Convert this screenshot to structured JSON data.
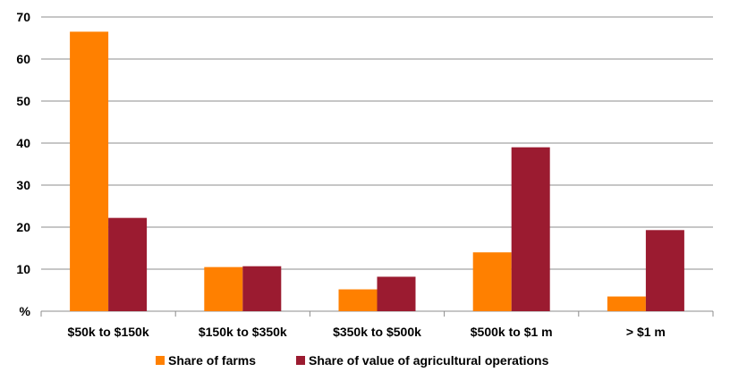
{
  "chart_data": {
    "type": "bar",
    "categories": [
      "$50k to $150k",
      "$150k to $350k",
      "$350k to $500k",
      "$500k to $1 m",
      "> $1 m"
    ],
    "series": [
      {
        "name": "Share of farms",
        "color": "#FF8000",
        "values": [
          66.5,
          10.5,
          5.2,
          14.0,
          3.5
        ]
      },
      {
        "name": "Share of value of agricultural operations",
        "color": "#9B1B30",
        "values": [
          22.2,
          10.7,
          8.2,
          39.0,
          19.3
        ]
      }
    ],
    "yticks": [
      "%",
      "10",
      "20",
      "30",
      "40",
      "50",
      "60",
      "70"
    ],
    "ylim": [
      0,
      70
    ],
    "grid": true,
    "legend_position": "bottom"
  }
}
